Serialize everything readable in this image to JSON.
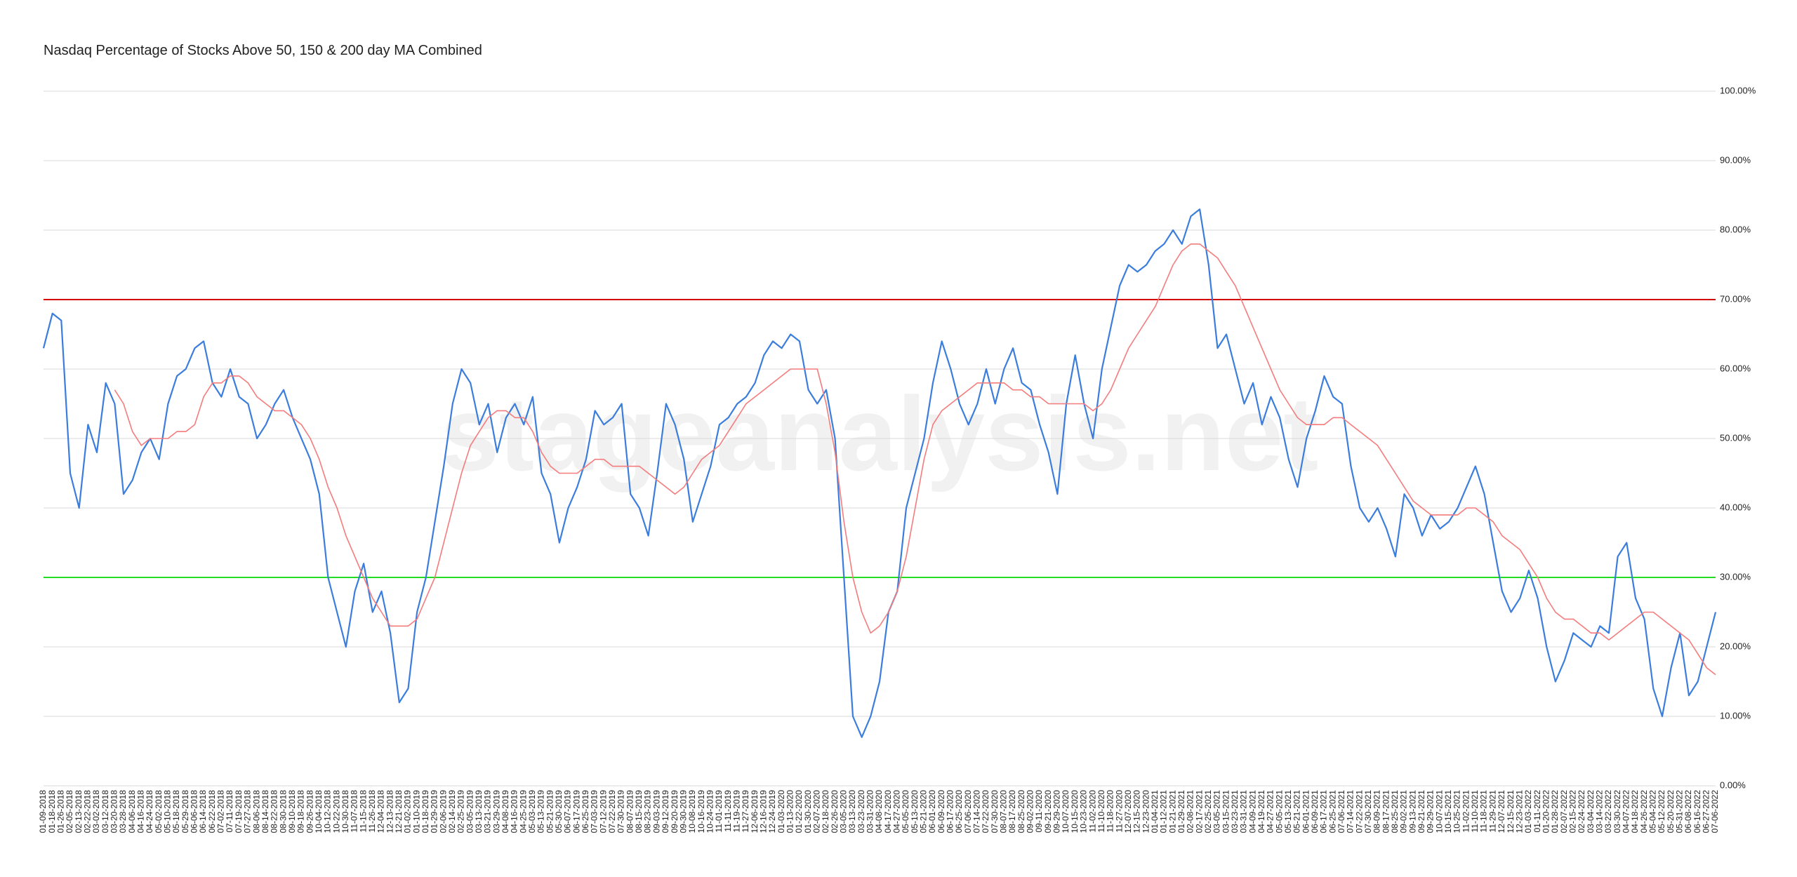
{
  "chart_data": {
    "type": "line",
    "title": "Nasdaq Percentage of Stocks Above 50, 150 & 200 day MA Combined",
    "watermark": "stageanalysis.net",
    "categories": [
      "01-09-2018",
      "01-18-2018",
      "01-26-2018",
      "02-05-2018",
      "02-13-2018",
      "02-22-2018",
      "03-02-2018",
      "03-12-2018",
      "03-20-2018",
      "03-28-2018",
      "04-06-2018",
      "04-16-2018",
      "04-24-2018",
      "05-02-2018",
      "05-10-2018",
      "05-18-2018",
      "05-29-2018",
      "06-06-2018",
      "06-14-2018",
      "06-22-2018",
      "07-02-2018",
      "07-11-2018",
      "07-19-2018",
      "07-27-2018",
      "08-06-2018",
      "08-14-2018",
      "08-22-2018",
      "08-30-2018",
      "09-10-2018",
      "09-18-2018",
      "09-26-2018",
      "10-04-2018",
      "10-12-2018",
      "10-22-2018",
      "10-30-2018",
      "11-07-2018",
      "11-15-2018",
      "11-26-2018",
      "12-04-2018",
      "12-13-2018",
      "12-21-2018",
      "01-02-2019",
      "01-10-2019",
      "01-18-2019",
      "01-29-2019",
      "02-06-2019",
      "02-14-2019",
      "02-25-2019",
      "03-05-2019",
      "03-13-2019",
      "03-21-2019",
      "03-29-2019",
      "04-08-2019",
      "04-16-2019",
      "04-25-2019",
      "05-03-2019",
      "05-13-2019",
      "05-21-2019",
      "05-30-2019",
      "06-07-2019",
      "06-17-2019",
      "06-25-2019",
      "07-03-2019",
      "07-12-2019",
      "07-22-2019",
      "07-30-2019",
      "08-07-2019",
      "08-15-2019",
      "08-23-2019",
      "09-03-2019",
      "09-12-2019",
      "09-20-2019",
      "09-30-2019",
      "10-08-2019",
      "10-16-2019",
      "10-24-2019",
      "11-01-2019",
      "11-11-2019",
      "11-19-2019",
      "11-27-2019",
      "12-06-2019",
      "12-16-2019",
      "12-24-2019",
      "01-03-2020",
      "01-13-2020",
      "01-22-2020",
      "01-30-2020",
      "02-07-2020",
      "02-18-2020",
      "02-26-2020",
      "03-05-2020",
      "03-13-2020",
      "03-23-2020",
      "03-31-2020",
      "04-08-2020",
      "04-17-2020",
      "04-27-2020",
      "05-05-2020",
      "05-13-2020",
      "05-21-2020",
      "06-01-2020",
      "06-09-2020",
      "06-17-2020",
      "06-25-2020",
      "07-06-2020",
      "07-14-2020",
      "07-22-2020",
      "07-30-2020",
      "08-07-2020",
      "08-17-2020",
      "08-25-2020",
      "09-02-2020",
      "09-11-2020",
      "09-21-2020",
      "09-29-2020",
      "10-07-2020",
      "10-15-2020",
      "10-23-2020",
      "11-02-2020",
      "11-10-2020",
      "11-18-2020",
      "11-27-2020",
      "12-07-2020",
      "12-15-2020",
      "12-23-2020",
      "01-04-2021",
      "01-12-2021",
      "01-21-2021",
      "01-29-2021",
      "02-08-2021",
      "02-17-2021",
      "02-25-2021",
      "03-05-2021",
      "03-15-2021",
      "03-23-2021",
      "03-31-2021",
      "04-09-2021",
      "04-19-2021",
      "04-27-2021",
      "05-05-2021",
      "05-13-2021",
      "05-21-2021",
      "06-01-2021",
      "06-09-2021",
      "06-17-2021",
      "06-25-2021",
      "07-06-2021",
      "07-14-2021",
      "07-22-2021",
      "07-30-2021",
      "08-09-2021",
      "08-17-2021",
      "08-25-2021",
      "09-02-2021",
      "09-13-2021",
      "09-21-2021",
      "09-29-2021",
      "10-07-2021",
      "10-15-2021",
      "10-25-2021",
      "11-02-2021",
      "11-10-2021",
      "11-18-2021",
      "11-29-2021",
      "12-07-2021",
      "12-15-2021",
      "12-23-2021",
      "01-03-2022",
      "01-11-2022",
      "01-20-2022",
      "01-28-2022",
      "02-07-2022",
      "02-15-2022",
      "02-24-2022",
      "03-04-2022",
      "03-14-2022",
      "03-22-2022",
      "03-30-2022",
      "04-07-2022",
      "04-18-2022",
      "04-26-2022",
      "05-04-2022",
      "05-12-2022",
      "05-20-2022",
      "05-31-2022",
      "06-08-2022",
      "06-16-2022",
      "06-27-2022",
      "07-06-2022"
    ],
    "series": [
      {
        "color": "#3b7ddd",
        "width": 2.2,
        "values": [
          63,
          68,
          67,
          45,
          40,
          52,
          48,
          58,
          55,
          42,
          44,
          48,
          50,
          47,
          55,
          59,
          60,
          63,
          64,
          58,
          56,
          60,
          56,
          55,
          50,
          52,
          55,
          57,
          53,
          50,
          47,
          42,
          30,
          25,
          20,
          28,
          32,
          25,
          28,
          22,
          12,
          14,
          25,
          30,
          38,
          46,
          55,
          60,
          58,
          52,
          55,
          48,
          53,
          55,
          52,
          56,
          45,
          42,
          35,
          40,
          43,
          47,
          54,
          52,
          53,
          55,
          42,
          40,
          36,
          45,
          55,
          52,
          47,
          38,
          42,
          46,
          52,
          53,
          55,
          56,
          58,
          62,
          64,
          63,
          65,
          64,
          57,
          55,
          57,
          50,
          30,
          10,
          7,
          10,
          15,
          25,
          28,
          40,
          45,
          50,
          58,
          64,
          60,
          55,
          52,
          55,
          60,
          55,
          60,
          63,
          58,
          57,
          52,
          48,
          42,
          55,
          62,
          55,
          50,
          60,
          66,
          72,
          75,
          74,
          75,
          77,
          78,
          80,
          78,
          82,
          83,
          75,
          63,
          65,
          60,
          55,
          58,
          52,
          56,
          53,
          47,
          43,
          50,
          54,
          59,
          56,
          55,
          46,
          40,
          38,
          40,
          37,
          33,
          42,
          40,
          36,
          39,
          37,
          38,
          40,
          43,
          46,
          42,
          35,
          28,
          25,
          27,
          31,
          27,
          20,
          15,
          18,
          22,
          21,
          20,
          23,
          22,
          33,
          35,
          27,
          24,
          14,
          10,
          17,
          22,
          13,
          15,
          20,
          25
        ]
      },
      {
        "color": "#f47c7c",
        "width": 1.6,
        "values": [
          null,
          null,
          null,
          null,
          null,
          null,
          null,
          null,
          57,
          55,
          51,
          49,
          50,
          50,
          50,
          51,
          51,
          52,
          56,
          58,
          58,
          59,
          59,
          58,
          56,
          55,
          54,
          54,
          53,
          52,
          50,
          47,
          43,
          40,
          36,
          33,
          30,
          27,
          25,
          23,
          23,
          23,
          24,
          27,
          30,
          35,
          40,
          45,
          49,
          51,
          53,
          54,
          54,
          53,
          53,
          51,
          48,
          46,
          45,
          45,
          45,
          46,
          47,
          47,
          46,
          46,
          46,
          46,
          45,
          44,
          43,
          42,
          43,
          45,
          47,
          48,
          49,
          51,
          53,
          55,
          56,
          57,
          58,
          59,
          60,
          60,
          60,
          60,
          55,
          48,
          38,
          30,
          25,
          22,
          23,
          25,
          28,
          33,
          40,
          47,
          52,
          54,
          55,
          56,
          57,
          58,
          58,
          58,
          58,
          57,
          57,
          56,
          56,
          55,
          55,
          55,
          55,
          55,
          54,
          55,
          57,
          60,
          63,
          65,
          67,
          69,
          72,
          75,
          77,
          78,
          78,
          77,
          76,
          74,
          72,
          69,
          66,
          63,
          60,
          57,
          55,
          53,
          52,
          52,
          52,
          53,
          53,
          52,
          51,
          50,
          49,
          47,
          45,
          43,
          41,
          40,
          39,
          39,
          39,
          39,
          40,
          40,
          39,
          38,
          36,
          35,
          34,
          32,
          30,
          27,
          25,
          24,
          24,
          23,
          22,
          22,
          21,
          22,
          23,
          24,
          25,
          25,
          24,
          23,
          22,
          21,
          19,
          17,
          16
        ]
      }
    ],
    "hlines": [
      {
        "value": 70,
        "color": "#d40000"
      },
      {
        "value": 30,
        "color": "#22dd22"
      }
    ],
    "ylim": [
      0,
      100
    ],
    "yticks": [
      {
        "value": 0,
        "label": "0.00%"
      },
      {
        "value": 10,
        "label": "10.00%"
      },
      {
        "value": 20,
        "label": "20.00%"
      },
      {
        "value": 30,
        "label": "30.00%"
      },
      {
        "value": 40,
        "label": "40.00%"
      },
      {
        "value": 50,
        "label": "50.00%"
      },
      {
        "value": 60,
        "label": "60.00%"
      },
      {
        "value": 70,
        "label": "70.00%"
      },
      {
        "value": 80,
        "label": "80.00%"
      },
      {
        "value": 90,
        "label": "90.00%"
      },
      {
        "value": 100,
        "label": "100.00%"
      }
    ],
    "grid": true
  }
}
